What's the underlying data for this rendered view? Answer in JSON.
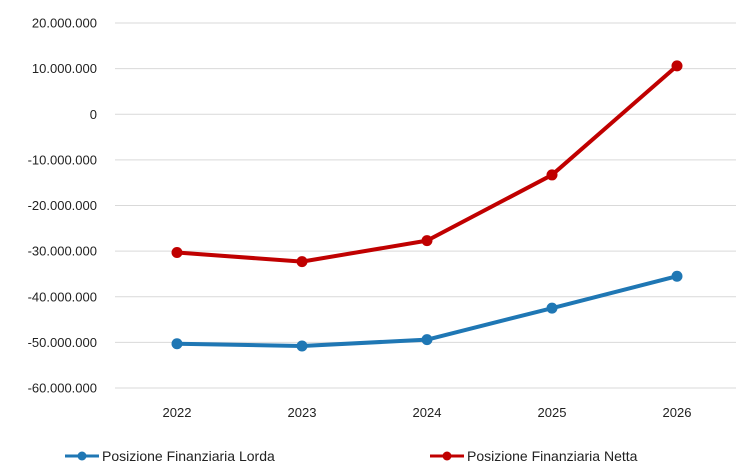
{
  "chart_data": {
    "type": "line",
    "categories": [
      "2022",
      "2023",
      "2024",
      "2025",
      "2026"
    ],
    "series": [
      {
        "name": "Posizione Finanziaria Lorda",
        "color": "#1f77b4",
        "values": [
          -50300000,
          -50800000,
          -49400000,
          -42500000,
          -35500000
        ]
      },
      {
        "name": "Posizione Finanziaria Netta",
        "color": "#c00000",
        "values": [
          -30300000,
          -32300000,
          -27700000,
          -13300000,
          10600000
        ]
      }
    ],
    "ylim": [
      -60000000,
      20000000
    ],
    "yticks": [
      20000000,
      10000000,
      0,
      -10000000,
      -20000000,
      -30000000,
      -40000000,
      -50000000,
      -60000000
    ],
    "ytick_labels": [
      "20.000.000",
      "10.000.000",
      "0",
      "-10.000.000",
      "-20.000.000",
      "-30.000.000",
      "-40.000.000",
      "-50.000.000",
      "-60.000.000"
    ],
    "grid": true,
    "legend_position": "bottom",
    "title": "",
    "xlabel": "",
    "ylabel": ""
  }
}
